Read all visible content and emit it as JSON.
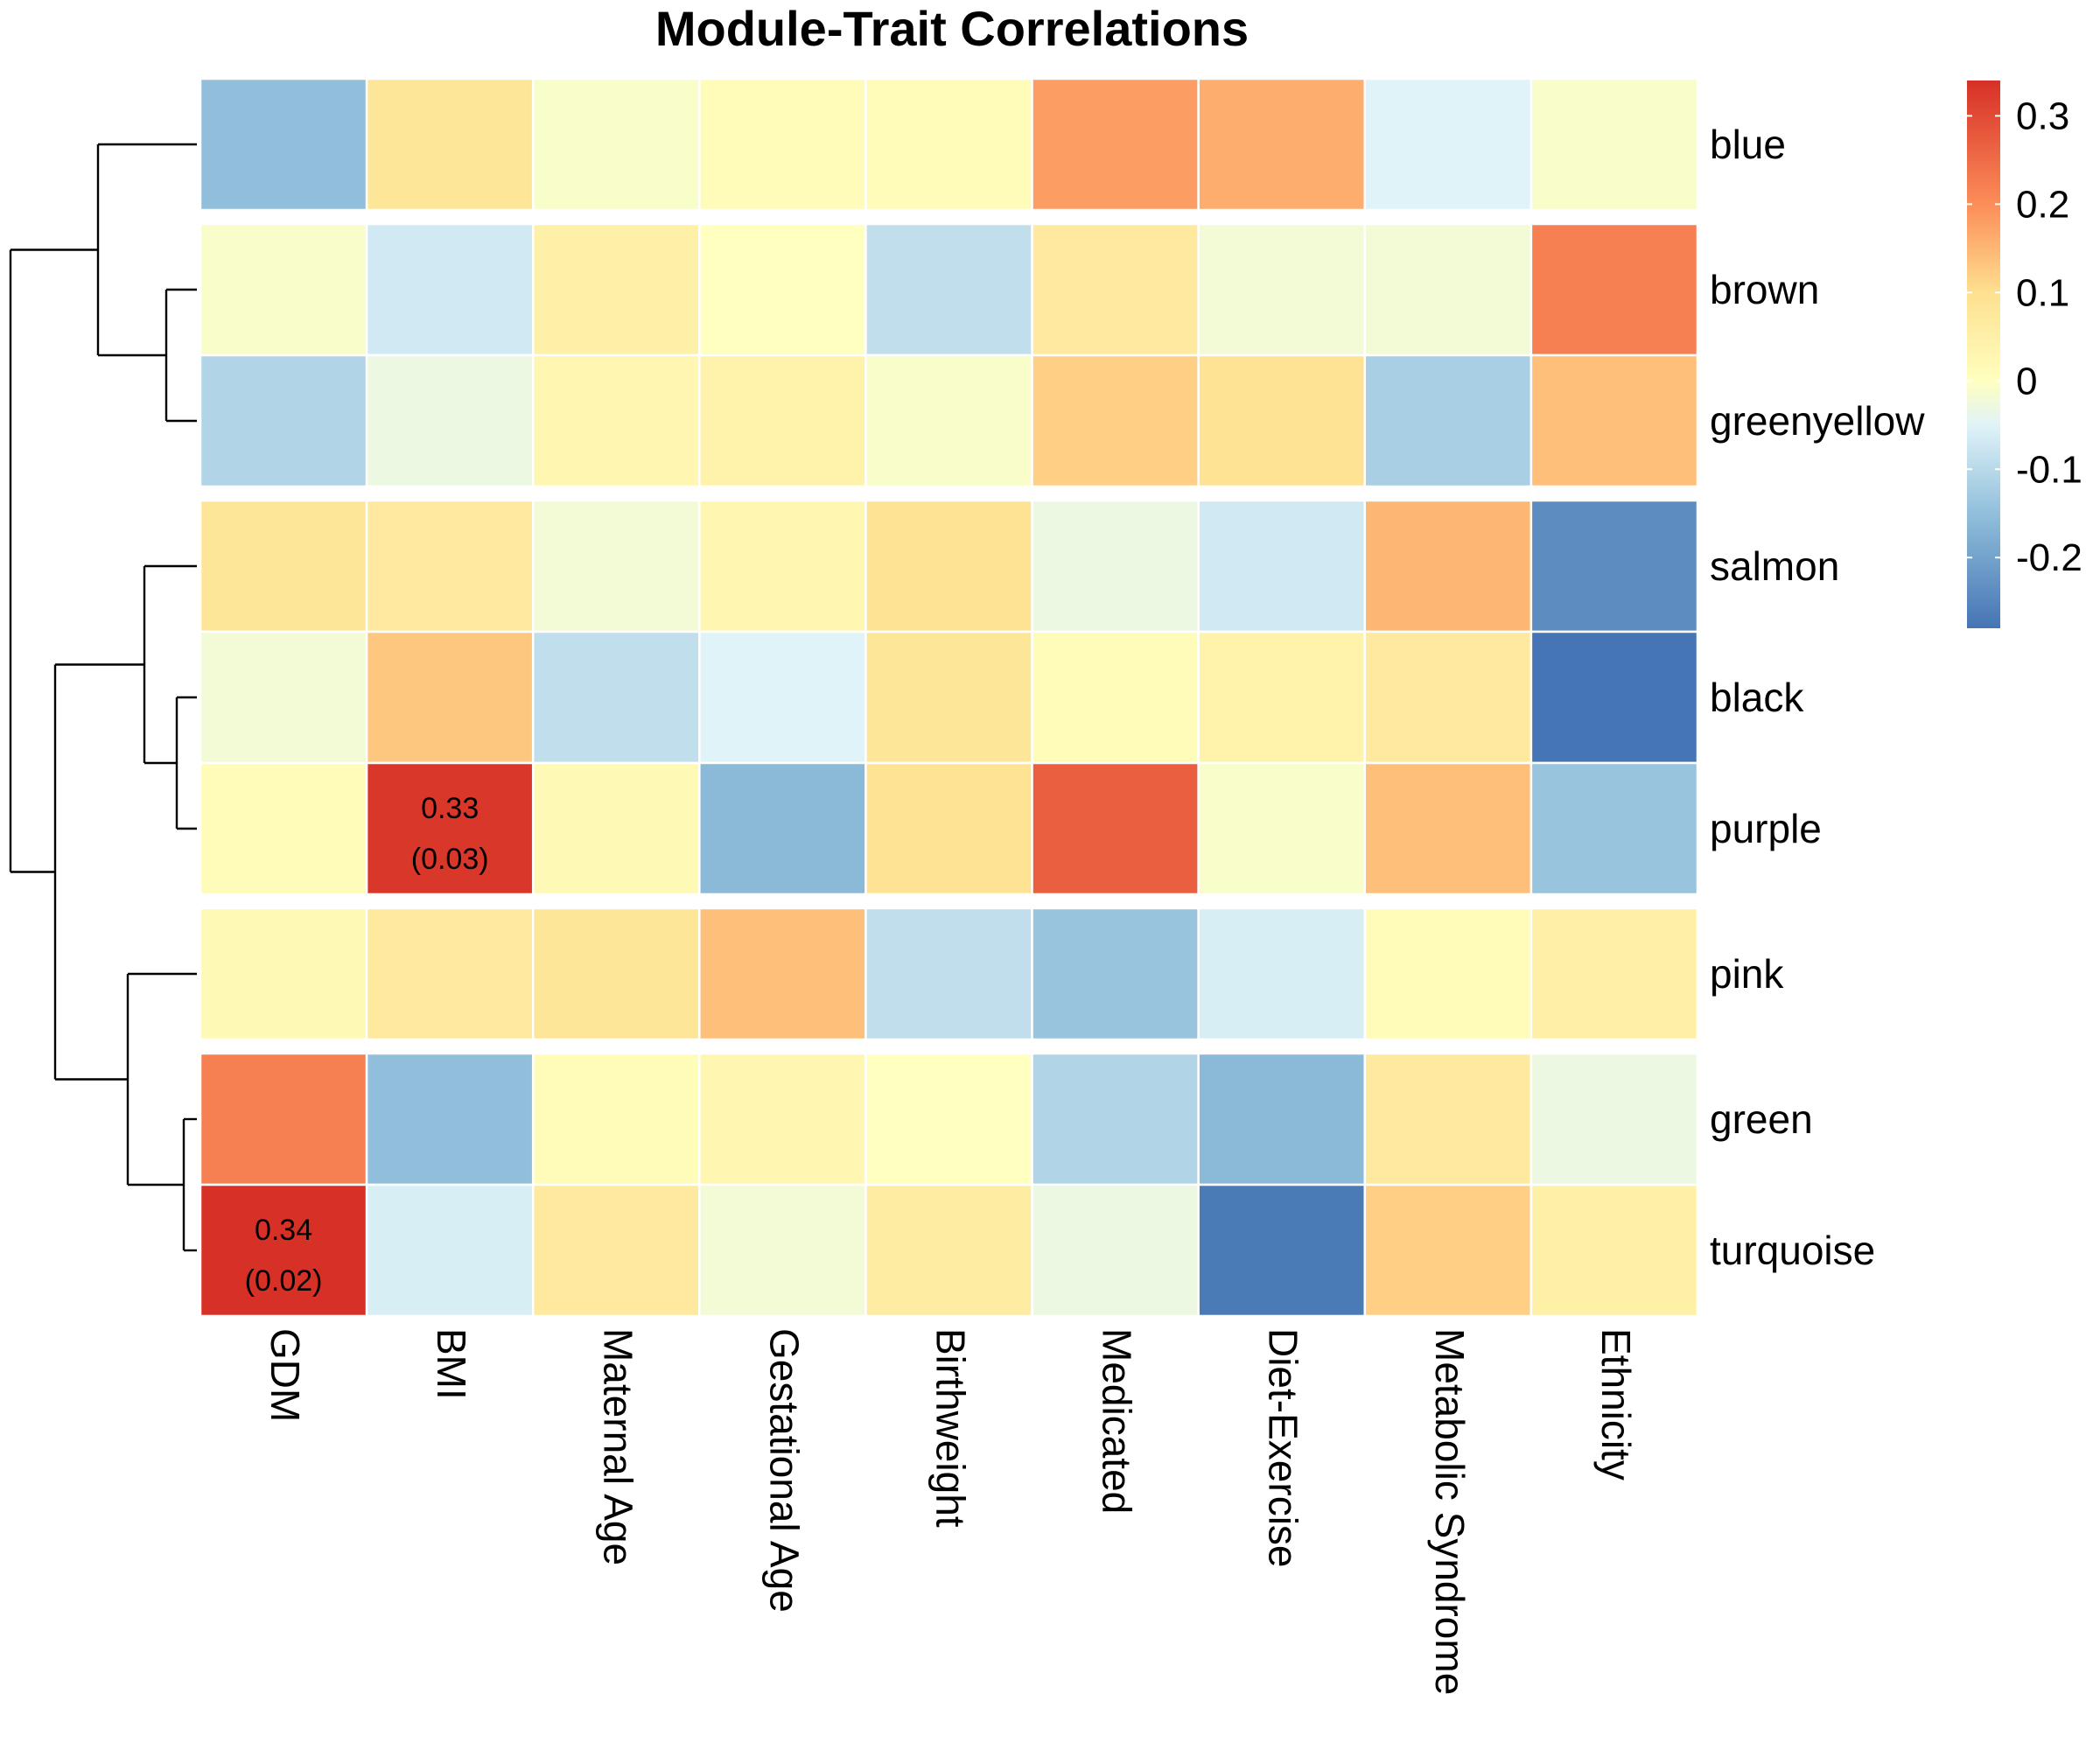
{
  "chart_data": {
    "type": "heatmap",
    "title": "Module-Trait Correlations",
    "columns": [
      "GDM",
      "BMI",
      "Maternal Age",
      "Gestational Age",
      "Birthweight",
      "Medicated",
      "Diet-Exercise",
      "Metabolic Syndrome",
      "Ethnicity"
    ],
    "rows": [
      "blue",
      "brown",
      "greenyellow",
      "salmon",
      "black",
      "purple",
      "pink",
      "green",
      "turquoise"
    ],
    "row_groups": [
      [
        "blue"
      ],
      [
        "brown",
        "greenyellow"
      ],
      [
        "salmon",
        "black",
        "purple"
      ],
      [
        "pink"
      ],
      [
        "green",
        "turquoise"
      ]
    ],
    "values": [
      [
        -0.15,
        0.08,
        -0.01,
        0.01,
        0.01,
        0.18,
        0.16,
        -0.05,
        -0.01
      ],
      [
        -0.01,
        -0.07,
        0.05,
        0.0,
        -0.09,
        0.07,
        -0.02,
        -0.02,
        0.22
      ],
      [
        -0.11,
        -0.03,
        0.03,
        0.04,
        -0.01,
        0.12,
        0.09,
        -0.12,
        0.14
      ],
      [
        0.08,
        0.07,
        -0.02,
        0.03,
        0.09,
        -0.03,
        -0.07,
        0.15,
        -0.24
      ],
      [
        -0.02,
        0.13,
        -0.09,
        -0.05,
        0.08,
        0.01,
        0.04,
        0.07,
        -0.28
      ],
      [
        0.01,
        0.33,
        0.02,
        -0.16,
        0.09,
        0.27,
        -0.01,
        0.14,
        -0.14
      ],
      [
        0.02,
        0.07,
        0.08,
        0.14,
        -0.09,
        -0.14,
        -0.06,
        0.01,
        0.05
      ],
      [
        0.22,
        -0.15,
        0.01,
        0.03,
        0.0,
        -0.11,
        -0.16,
        0.07,
        -0.03
      ],
      [
        0.34,
        -0.06,
        0.07,
        -0.02,
        0.06,
        -0.03,
        -0.27,
        0.12,
        0.05
      ]
    ],
    "cell_annotations": [
      {
        "row": "purple",
        "column": "BMI",
        "value": "0.33",
        "p": "(0.03)"
      },
      {
        "row": "turquoise",
        "column": "GDM",
        "value": "0.34",
        "p": "(0.02)"
      }
    ],
    "color_scale": {
      "min": -0.28,
      "max": 0.34,
      "stops": [
        {
          "v": -0.28,
          "c": "#4575b4"
        },
        {
          "v": -0.15,
          "c": "#91bfdb"
        },
        {
          "v": -0.05,
          "c": "#e0f3f8"
        },
        {
          "v": 0.0,
          "c": "#ffffbf"
        },
        {
          "v": 0.1,
          "c": "#fee090"
        },
        {
          "v": 0.2,
          "c": "#fc8d59"
        },
        {
          "v": 0.34,
          "c": "#d73027"
        }
      ],
      "ticks": [
        {
          "v": 0.3,
          "label": "0.3"
        },
        {
          "v": 0.2,
          "label": "0.2"
        },
        {
          "v": 0.1,
          "label": "0.1"
        },
        {
          "v": 0.0,
          "label": "0"
        },
        {
          "v": -0.1,
          "label": "-0.1"
        },
        {
          "v": -0.2,
          "label": "-0.2"
        }
      ]
    },
    "legend_position": "right",
    "dendrogram": "left"
  }
}
